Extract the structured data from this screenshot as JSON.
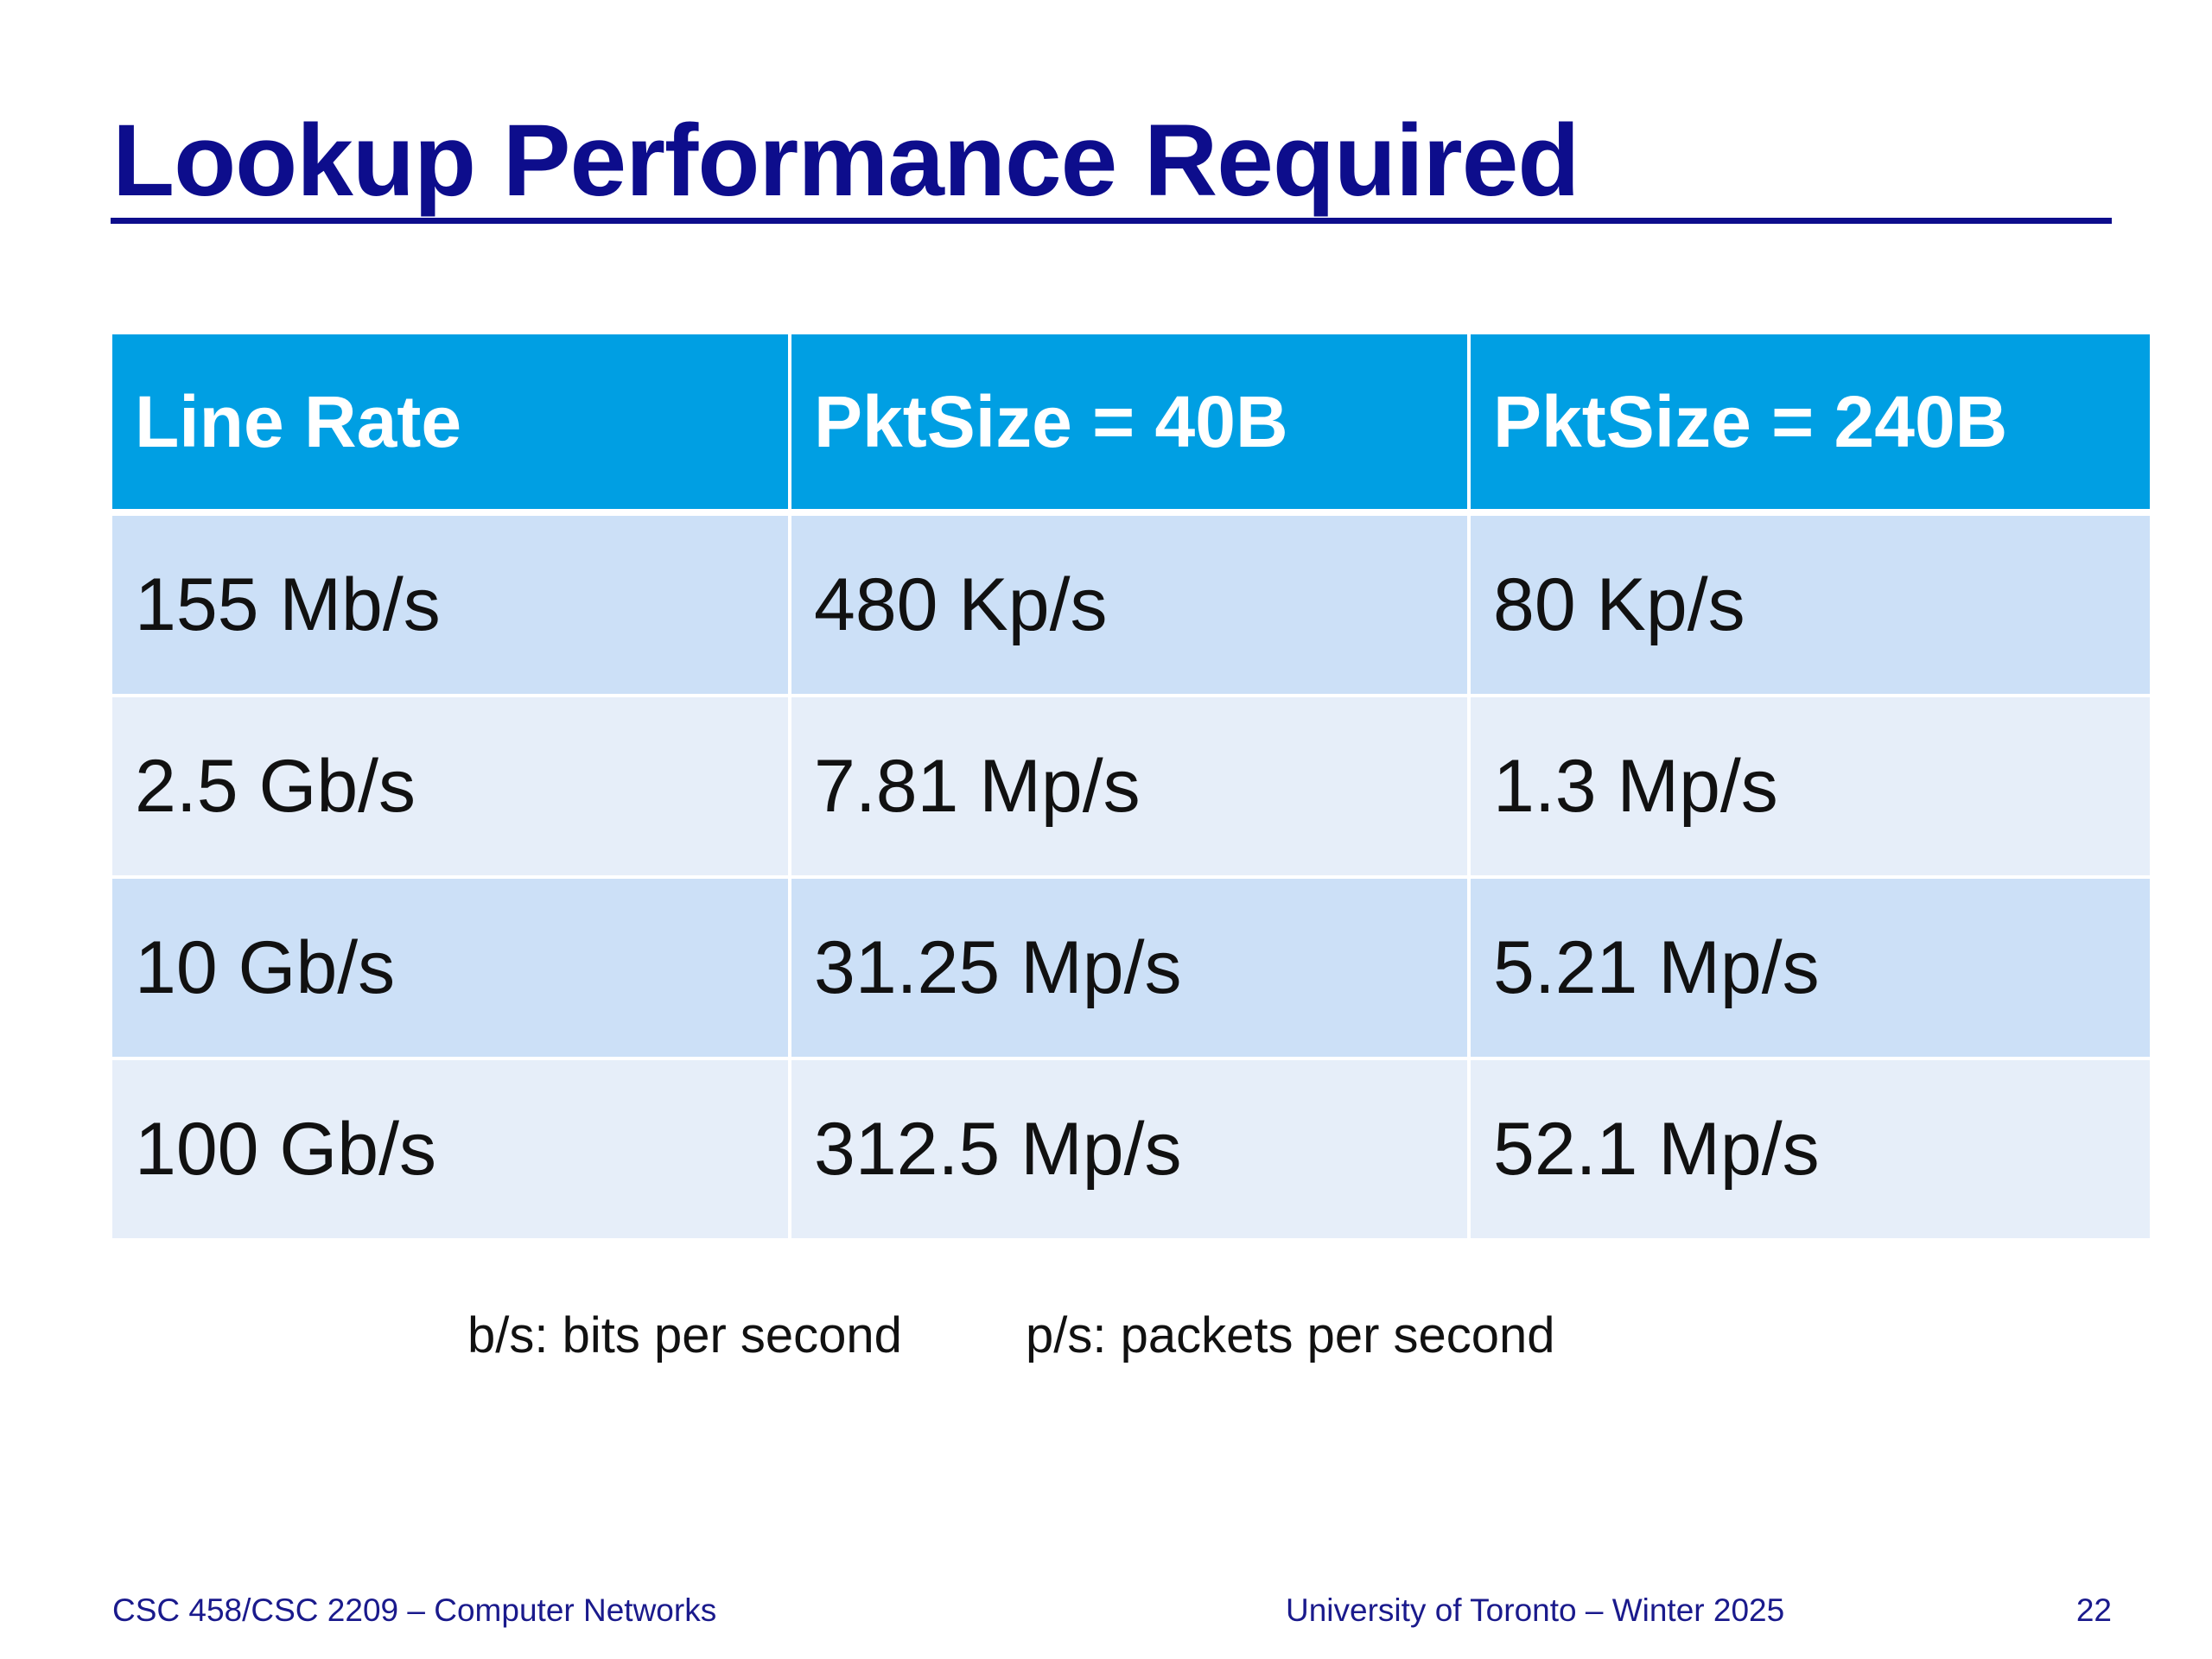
{
  "slide": {
    "title": "Lookup Performance Required"
  },
  "table": {
    "headers": [
      "Line Rate",
      "PktSize = 40B",
      "PktSize = 240B"
    ],
    "rows": [
      [
        "155 Mb/s",
        "480 Kp/s",
        "80 Kp/s"
      ],
      [
        "2.5 Gb/s",
        "7.81 Mp/s",
        "1.3 Mp/s"
      ],
      [
        "10 Gb/s",
        "31.25 Mp/s",
        "5.21 Mp/s"
      ],
      [
        "100 Gb/s",
        "312.5 Mp/s",
        "52.1 Mp/s"
      ]
    ]
  },
  "legend": {
    "bits": "b/s: bits per second",
    "packets": "p/s: packets per second"
  },
  "footer": {
    "course": "CSC 458/CSC 2209 – Computer Networks",
    "institution": "University of Toronto – Winter 2025",
    "page_number": "22"
  },
  "colors": {
    "title": "#0d0d8c",
    "header_bg": "#009fe3",
    "row_dark": "#cce0f7",
    "row_light": "#e6eef9"
  }
}
